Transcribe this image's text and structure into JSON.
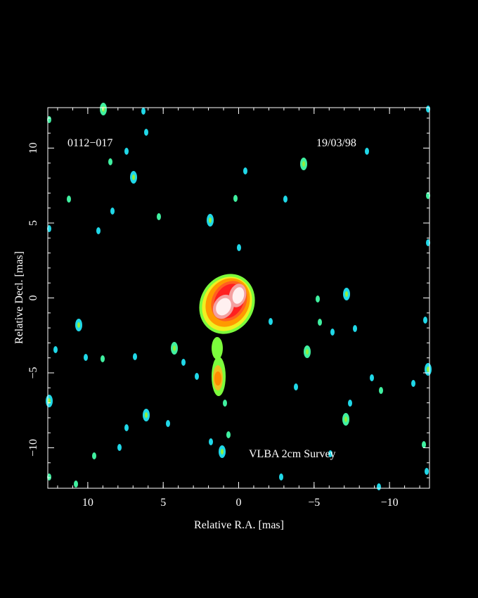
{
  "chart_data": {
    "type": "image",
    "title": "0112−017",
    "date": "19/03/98",
    "annotation": "VLBA 2cm Survey",
    "xlabel": "Relative R.A. [mas]",
    "ylabel": "Relative Decl. [mas]",
    "xlim": [
      12.65,
      -12.65
    ],
    "ylim": [
      -12.7,
      12.7
    ],
    "xticks": [
      10,
      5,
      0,
      {
        "value": -5,
        "label": "−5"
      },
      {
        "value": -10,
        "label": "−10"
      }
    ],
    "yticks": [
      {
        "value": -10,
        "label": "−10"
      },
      {
        "value": -5,
        "label": "−5"
      },
      0,
      5,
      10
    ],
    "xminorticks": [
      12,
      11,
      10,
      9,
      8,
      7,
      6,
      5,
      4,
      3,
      2,
      1,
      0,
      -1,
      -2,
      -3,
      -4,
      -5,
      -6,
      -7,
      -8,
      -9,
      -10,
      -11,
      -12
    ],
    "yminorticks": [
      -12,
      -11,
      -10,
      -9,
      -8,
      -7,
      -6,
      -5,
      -4,
      -3,
      -2,
      -1,
      0,
      1,
      2,
      3,
      4,
      5,
      6,
      7,
      8,
      9,
      10,
      11,
      12
    ]
  }
}
